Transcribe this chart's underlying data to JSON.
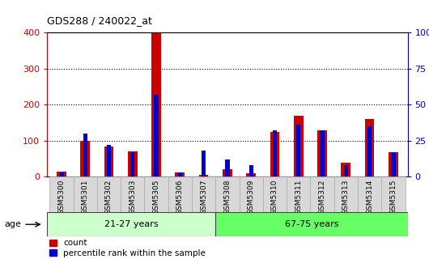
{
  "title": "GDS288 / 240022_at",
  "categories": [
    "GSM5300",
    "GSM5301",
    "GSM5302",
    "GSM5303",
    "GSM5305",
    "GSM5306",
    "GSM5307",
    "GSM5308",
    "GSM5309",
    "GSM5310",
    "GSM5311",
    "GSM5312",
    "GSM5313",
    "GSM5314",
    "GSM5315"
  ],
  "count_values": [
    15,
    100,
    85,
    70,
    398,
    12,
    5,
    22,
    10,
    125,
    170,
    130,
    38,
    160,
    68
  ],
  "percentile_values": [
    3,
    30,
    22,
    17,
    57,
    3,
    18,
    12,
    8,
    32,
    36,
    32,
    8,
    35,
    17
  ],
  "count_color": "#cc0000",
  "percentile_color": "#0000cc",
  "ylim_left": [
    0,
    400
  ],
  "ylim_right": [
    0,
    100
  ],
  "yticks_left": [
    0,
    100,
    200,
    300,
    400
  ],
  "yticks_right": [
    0,
    25,
    50,
    75,
    100
  ],
  "group1_label": "21-27 years",
  "group2_label": "67-75 years",
  "n_group1": 7,
  "n_group2": 8,
  "group1_color": "#ccffcc",
  "group2_color": "#66ff66",
  "age_label": "age",
  "legend_count": "count",
  "legend_percentile": "percentile rank within the sample",
  "bar_width": 0.4,
  "background_color": "#ffffff",
  "plot_bg_color": "#ffffff",
  "xticklabel_bg": "#d8d8d8",
  "grid_color": "#000000",
  "left_tick_color": "#cc0000",
  "right_tick_color": "#0000cc"
}
